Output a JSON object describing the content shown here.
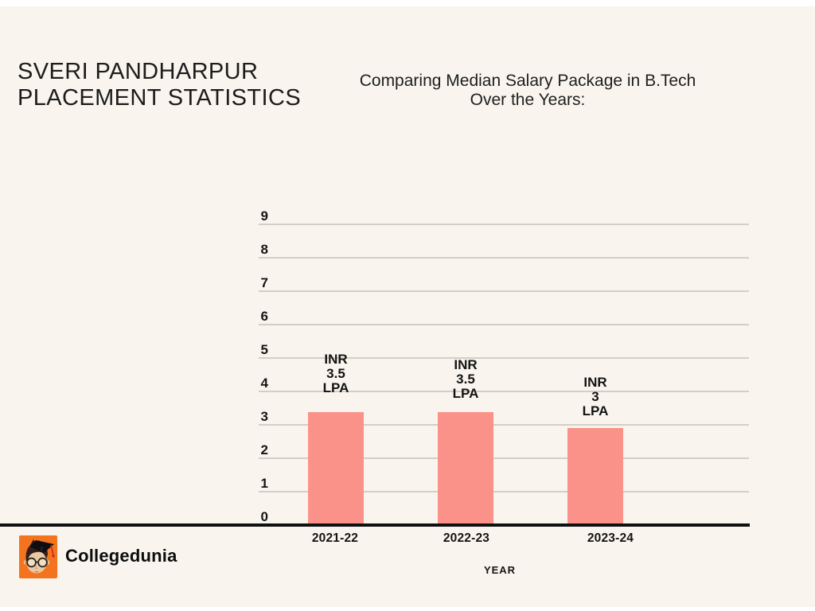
{
  "page": {
    "title_line1": "SVERI PANDHARPUR",
    "title_line2": "PLACEMENT STATISTICS",
    "subtitle_line1": "Comparing Median Salary Package in B.Tech",
    "subtitle_line2": "Over the Years:",
    "background_color": "#f9f5ee"
  },
  "branding": {
    "name": "Collegedunia",
    "logo_icon": "collegedunia-student-mascot-icon",
    "logo_color": "#f4731e"
  },
  "chart_data": {
    "type": "bar",
    "title": "Comparing Median Salary Package in B.Tech Over the Years:",
    "categories": [
      "2021-22",
      "2022-23",
      "2023-24"
    ],
    "values": [
      3.5,
      3.5,
      3
    ],
    "bar_labels": [
      [
        "INR",
        "3.5",
        "LPA"
      ],
      [
        "INR",
        "3.5",
        "LPA"
      ],
      [
        "INR",
        "3",
        "LPA"
      ]
    ],
    "xlabel": "YEAR",
    "ylabel": "",
    "ylim": [
      0,
      9
    ],
    "yticks": [
      0,
      1,
      2,
      3,
      4,
      5,
      6,
      7,
      8,
      9
    ],
    "grid": true,
    "legend": false,
    "bar_color": "#fb9289",
    "gridline_color": "#d2cfc6",
    "axis_color": "#101010"
  }
}
